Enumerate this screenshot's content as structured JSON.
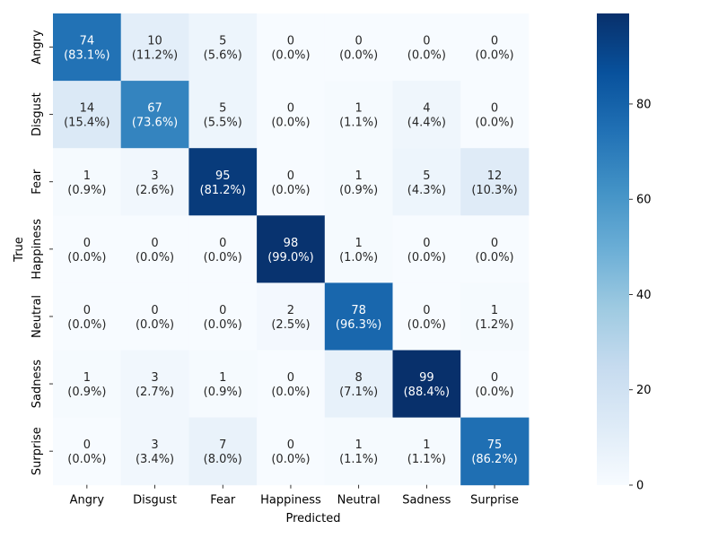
{
  "chart_data": {
    "type": "heatmap",
    "xlabel": "Predicted",
    "ylabel": "True",
    "x_categories": [
      "Angry",
      "Disgust",
      "Fear",
      "Happiness",
      "Neutral",
      "Sadness",
      "Surprise"
    ],
    "y_categories": [
      "Angry",
      "Disgust",
      "Fear",
      "Happiness",
      "Neutral",
      "Sadness",
      "Surprise"
    ],
    "counts": [
      [
        74,
        10,
        5,
        0,
        0,
        0,
        0
      ],
      [
        14,
        67,
        5,
        0,
        1,
        4,
        0
      ],
      [
        1,
        3,
        95,
        0,
        1,
        5,
        12
      ],
      [
        0,
        0,
        0,
        98,
        1,
        0,
        0
      ],
      [
        0,
        0,
        0,
        2,
        78,
        0,
        1
      ],
      [
        1,
        3,
        1,
        0,
        8,
        99,
        0
      ],
      [
        0,
        3,
        7,
        0,
        1,
        1,
        75
      ]
    ],
    "percentages": [
      [
        "83.1%",
        "11.2%",
        "5.6%",
        "0.0%",
        "0.0%",
        "0.0%",
        "0.0%"
      ],
      [
        "15.4%",
        "73.6%",
        "5.5%",
        "0.0%",
        "1.1%",
        "4.4%",
        "0.0%"
      ],
      [
        "0.9%",
        "2.6%",
        "81.2%",
        "0.0%",
        "0.9%",
        "4.3%",
        "10.3%"
      ],
      [
        "0.0%",
        "0.0%",
        "0.0%",
        "99.0%",
        "1.0%",
        "0.0%",
        "0.0%"
      ],
      [
        "0.0%",
        "0.0%",
        "0.0%",
        "2.5%",
        "96.3%",
        "0.0%",
        "1.2%"
      ],
      [
        "0.9%",
        "2.7%",
        "0.9%",
        "0.0%",
        "7.1%",
        "88.4%",
        "0.0%"
      ],
      [
        "0.0%",
        "3.4%",
        "8.0%",
        "0.0%",
        "1.1%",
        "1.1%",
        "86.2%"
      ]
    ],
    "colormap": "Blues",
    "colorbar": {
      "min": 0,
      "max": 99,
      "ticks": [
        0,
        20,
        40,
        60,
        80
      ]
    },
    "color_stops": [
      "#f7fbff",
      "#deebf7",
      "#c6dbef",
      "#9ecae1",
      "#6baed6",
      "#4292c6",
      "#2171b5",
      "#08519c",
      "#08306b"
    ]
  }
}
